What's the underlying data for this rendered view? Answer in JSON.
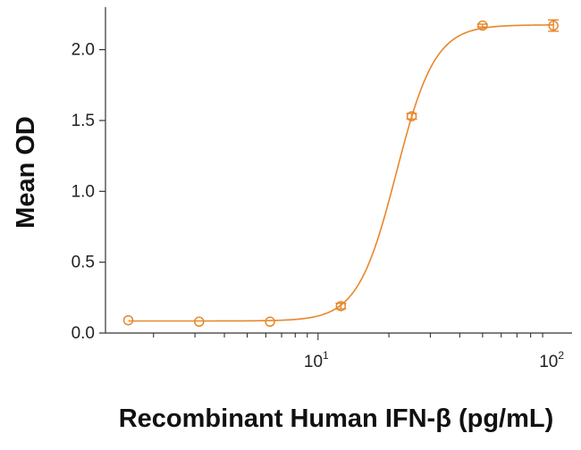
{
  "chart_data": {
    "type": "scatter",
    "title": "",
    "xlabel": "Recombinant Human IFN-β (pg/mL)",
    "ylabel": "Mean OD",
    "x_scale": "log10",
    "xlim": [
      1.25,
      120
    ],
    "ylim": [
      0.0,
      2.3
    ],
    "y_ticks": [
      0.0,
      0.5,
      1.0,
      1.5,
      2.0
    ],
    "y_tick_labels": [
      "0.0",
      "0.5",
      "1.0",
      "1.5",
      "2.0"
    ],
    "x_major_ticks": [
      10,
      100
    ],
    "x_tick_labels": [
      {
        "base": "10",
        "exp": "1"
      },
      {
        "base": "10",
        "exp": "2"
      }
    ],
    "grid": false,
    "legend": "none",
    "color": "#E8872A",
    "series": [
      {
        "x": [
          1.5625,
          3.125,
          6.25,
          12.5,
          25,
          50,
          100
        ],
        "y": [
          0.09,
          0.08,
          0.08,
          0.19,
          1.53,
          2.17,
          2.17
        ],
        "err": [
          0.0,
          0.0,
          0.0,
          0.02,
          0.02,
          0.01,
          0.04
        ]
      }
    ],
    "fit": {
      "model": "4PL",
      "bottom": 0.085,
      "top": 2.175,
      "ec50": 21.5,
      "hill": 5.3
    }
  }
}
